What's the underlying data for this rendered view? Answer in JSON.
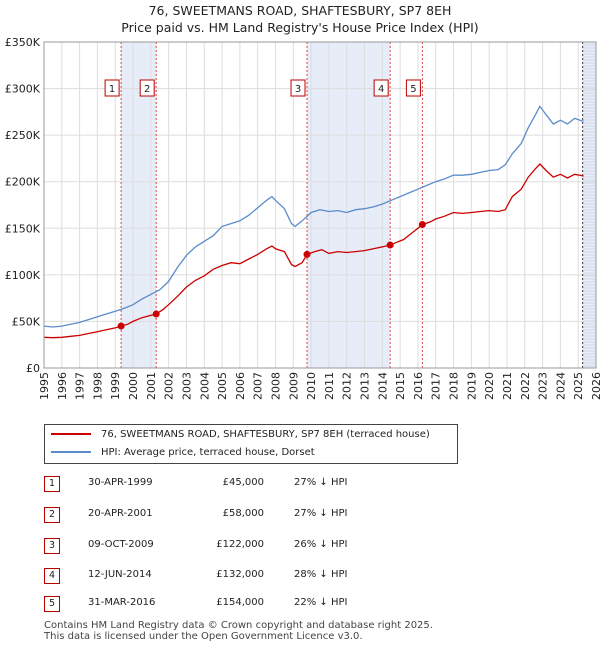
{
  "title": "76, SWEETMANS ROAD, SHAFTESBURY, SP7 8EH",
  "subtitle": "Price paid vs. HM Land Registry's House Price Index (HPI)",
  "colors": {
    "price": "#cc0000",
    "hpi": "#5b8ccc",
    "shade": "#dbe4f5",
    "grid": "#dddddd"
  },
  "chart_data": {
    "type": "line",
    "xlim": [
      1995,
      2026
    ],
    "ylim": [
      0,
      350000
    ],
    "yticks": [
      {
        "value": 0,
        "label": "£0"
      },
      {
        "value": 50000,
        "label": "£50K"
      },
      {
        "value": 100000,
        "label": "£100K"
      },
      {
        "value": 150000,
        "label": "£150K"
      },
      {
        "value": 200000,
        "label": "£200K"
      },
      {
        "value": 250000,
        "label": "£250K"
      },
      {
        "value": 300000,
        "label": "£300K"
      },
      {
        "value": 350000,
        "label": "£350K"
      }
    ],
    "xticks": [
      "1995",
      "1996",
      "1997",
      "1998",
      "1999",
      "2000",
      "2001",
      "2002",
      "2003",
      "2004",
      "2005",
      "2006",
      "2007",
      "2008",
      "2009",
      "2010",
      "2011",
      "2012",
      "2013",
      "2014",
      "2015",
      "2016",
      "2017",
      "2018",
      "2019",
      "2020",
      "2021",
      "2022",
      "2023",
      "2024",
      "2025",
      "2026"
    ],
    "shaded_spans": [
      [
        1999.33,
        2001.3
      ],
      [
        2009.77,
        2014.44
      ],
      [
        2025.25,
        2026
      ]
    ],
    "series": [
      {
        "name": "76, SWEETMANS ROAD, SHAFTESBURY, SP7 8EH (terraced house)",
        "color": "#cc0000",
        "points": [
          [
            1995,
            33000
          ],
          [
            1995.5,
            32500
          ],
          [
            1996,
            33000
          ],
          [
            1996.5,
            34000
          ],
          [
            1997,
            35000
          ],
          [
            1997.5,
            37000
          ],
          [
            1998,
            39000
          ],
          [
            1998.5,
            41000
          ],
          [
            1999,
            43000
          ],
          [
            1999.33,
            45000
          ],
          [
            1999.7,
            47000
          ],
          [
            2000,
            50000
          ],
          [
            2000.5,
            54000
          ],
          [
            2001,
            56500
          ],
          [
            2001.3,
            58000
          ],
          [
            2001.7,
            63000
          ],
          [
            2002,
            68000
          ],
          [
            2002.5,
            77000
          ],
          [
            2003,
            87000
          ],
          [
            2003.5,
            94000
          ],
          [
            2004,
            99000
          ],
          [
            2004.5,
            106000
          ],
          [
            2005,
            110000
          ],
          [
            2005.5,
            113000
          ],
          [
            2006,
            112000
          ],
          [
            2006.5,
            117000
          ],
          [
            2007,
            122000
          ],
          [
            2007.5,
            128000
          ],
          [
            2007.8,
            131000
          ],
          [
            2008,
            128000
          ],
          [
            2008.5,
            125000
          ],
          [
            2008.9,
            111000
          ],
          [
            2009.1,
            109000
          ],
          [
            2009.5,
            113000
          ],
          [
            2009.77,
            122000
          ],
          [
            2010.2,
            125000
          ],
          [
            2010.6,
            127000
          ],
          [
            2011,
            123000
          ],
          [
            2011.5,
            125000
          ],
          [
            2012,
            124000
          ],
          [
            2012.5,
            125000
          ],
          [
            2013,
            126000
          ],
          [
            2013.5,
            128000
          ],
          [
            2014,
            130000
          ],
          [
            2014.44,
            132000
          ],
          [
            2014.8,
            135000
          ],
          [
            2015.2,
            138000
          ],
          [
            2015.6,
            144000
          ],
          [
            2016,
            150000
          ],
          [
            2016.25,
            154000
          ],
          [
            2016.7,
            157000
          ],
          [
            2017,
            160000
          ],
          [
            2017.5,
            163000
          ],
          [
            2018,
            167000
          ],
          [
            2018.5,
            166000
          ],
          [
            2019,
            167000
          ],
          [
            2019.5,
            168000
          ],
          [
            2020,
            169000
          ],
          [
            2020.5,
            168000
          ],
          [
            2020.9,
            170000
          ],
          [
            2021.3,
            184000
          ],
          [
            2021.8,
            192000
          ],
          [
            2022.2,
            205000
          ],
          [
            2022.6,
            214000
          ],
          [
            2022.85,
            219000
          ],
          [
            2023.2,
            212000
          ],
          [
            2023.6,
            205000
          ],
          [
            2024,
            208000
          ],
          [
            2024.4,
            204000
          ],
          [
            2024.8,
            208000
          ],
          [
            2025.1,
            207000
          ],
          [
            2025.3,
            206000
          ]
        ]
      },
      {
        "name": "HPI: Average price, terraced house, Dorset",
        "color": "#5b8ccc",
        "points": [
          [
            1995,
            45000
          ],
          [
            1995.5,
            44000
          ],
          [
            1996,
            45000
          ],
          [
            1996.5,
            47000
          ],
          [
            1997,
            49000
          ],
          [
            1997.5,
            52000
          ],
          [
            1998,
            55000
          ],
          [
            1998.5,
            58000
          ],
          [
            1999,
            61000
          ],
          [
            1999.5,
            64000
          ],
          [
            2000,
            68000
          ],
          [
            2000.5,
            74000
          ],
          [
            2001,
            79000
          ],
          [
            2001.5,
            84000
          ],
          [
            2002,
            93000
          ],
          [
            2002.5,
            108000
          ],
          [
            2003,
            121000
          ],
          [
            2003.5,
            130000
          ],
          [
            2004,
            136000
          ],
          [
            2004.5,
            142000
          ],
          [
            2005,
            152000
          ],
          [
            2005.5,
            155000
          ],
          [
            2006,
            158000
          ],
          [
            2006.5,
            164000
          ],
          [
            2007,
            172000
          ],
          [
            2007.5,
            180000
          ],
          [
            2007.8,
            184000
          ],
          [
            2008,
            180000
          ],
          [
            2008.5,
            171000
          ],
          [
            2008.9,
            155000
          ],
          [
            2009.1,
            152000
          ],
          [
            2009.5,
            158000
          ],
          [
            2010,
            167000
          ],
          [
            2010.5,
            170000
          ],
          [
            2011,
            168000
          ],
          [
            2011.5,
            169000
          ],
          [
            2012,
            167000
          ],
          [
            2012.5,
            170000
          ],
          [
            2013,
            171000
          ],
          [
            2013.5,
            173000
          ],
          [
            2014,
            176000
          ],
          [
            2014.5,
            180000
          ],
          [
            2015,
            184000
          ],
          [
            2015.5,
            188000
          ],
          [
            2016,
            192000
          ],
          [
            2016.5,
            196000
          ],
          [
            2017,
            200000
          ],
          [
            2017.5,
            203000
          ],
          [
            2018,
            207000
          ],
          [
            2018.5,
            207000
          ],
          [
            2019,
            208000
          ],
          [
            2019.5,
            210000
          ],
          [
            2020,
            212000
          ],
          [
            2020.5,
            213000
          ],
          [
            2020.9,
            218000
          ],
          [
            2021.3,
            230000
          ],
          [
            2021.8,
            241000
          ],
          [
            2022.2,
            258000
          ],
          [
            2022.6,
            272000
          ],
          [
            2022.85,
            281000
          ],
          [
            2023.2,
            272000
          ],
          [
            2023.6,
            262000
          ],
          [
            2024,
            266000
          ],
          [
            2024.4,
            262000
          ],
          [
            2024.8,
            268000
          ],
          [
            2025.1,
            266000
          ],
          [
            2025.3,
            265000
          ]
        ]
      }
    ],
    "sales": [
      {
        "num": "1",
        "x": 1999.33,
        "price": 45000
      },
      {
        "num": "2",
        "x": 2001.3,
        "price": 58000
      },
      {
        "num": "3",
        "x": 2009.77,
        "price": 122000
      },
      {
        "num": "4",
        "x": 2014.44,
        "price": 132000
      },
      {
        "num": "5",
        "x": 2016.25,
        "price": 154000
      }
    ]
  },
  "legend": {
    "price_label": "76, SWEETMANS ROAD, SHAFTESBURY, SP7 8EH (terraced house)",
    "hpi_label": "HPI: Average price, terraced house, Dorset"
  },
  "sales_table": [
    {
      "num": "1",
      "date": "30-APR-1999",
      "price": "£45,000",
      "hpi": "27% ↓ HPI"
    },
    {
      "num": "2",
      "date": "20-APR-2001",
      "price": "£58,000",
      "hpi": "27% ↓ HPI"
    },
    {
      "num": "3",
      "date": "09-OCT-2009",
      "price": "£122,000",
      "hpi": "26% ↓ HPI"
    },
    {
      "num": "4",
      "date": "12-JUN-2014",
      "price": "£132,000",
      "hpi": "28% ↓ HPI"
    },
    {
      "num": "5",
      "date": "31-MAR-2016",
      "price": "£154,000",
      "hpi": "22% ↓ HPI"
    }
  ],
  "footer": {
    "line1": "Contains HM Land Registry data © Crown copyright and database right 2025.",
    "line2": "This data is licensed under the Open Government Licence v3.0."
  }
}
